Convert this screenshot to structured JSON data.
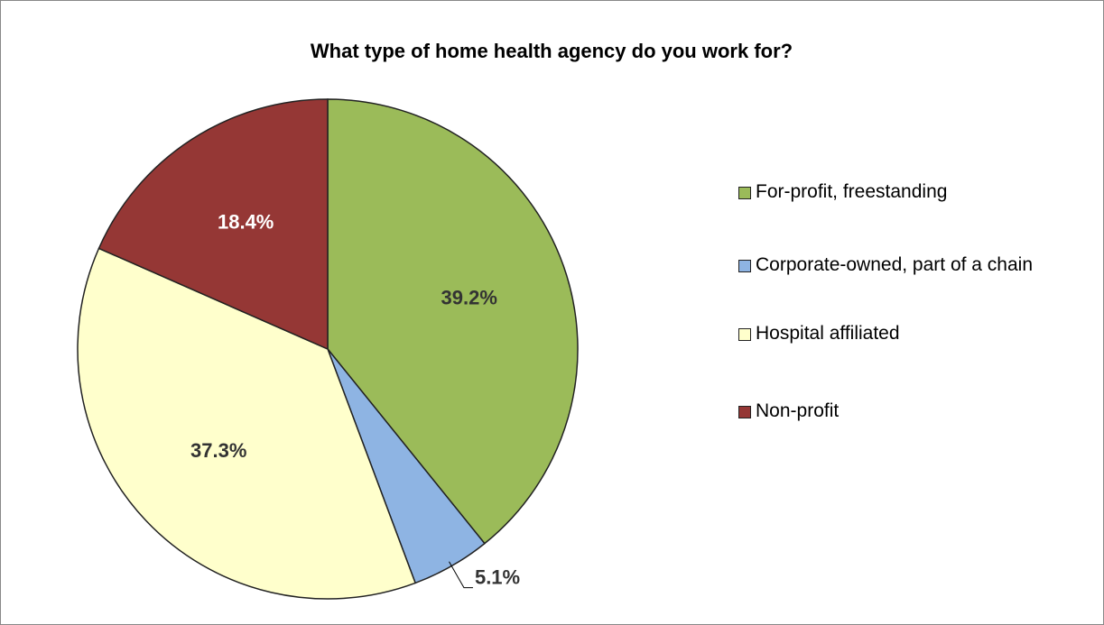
{
  "chart_data": {
    "type": "pie",
    "title": "What type of home health agency do you work for?",
    "categories": [
      "For-profit, freestanding",
      "Corporate-owned, part of a chain",
      "Hospital affiliated",
      "Non-profit"
    ],
    "values": [
      39.2,
      5.1,
      37.3,
      18.4
    ],
    "value_labels": [
      "39.2%",
      "5.1%",
      "37.3%",
      "18.4%"
    ],
    "colors": [
      "#9bbb59",
      "#8eb4e3",
      "#ffffcc",
      "#953735"
    ],
    "legend": "right"
  }
}
